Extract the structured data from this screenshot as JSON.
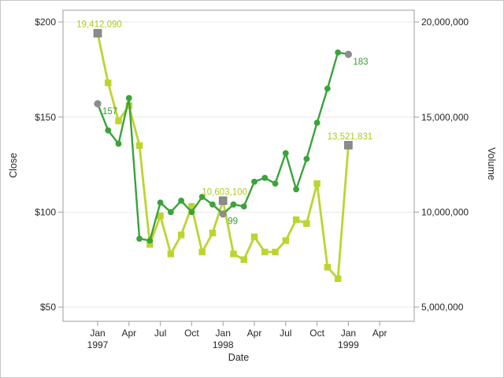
{
  "chart_data": {
    "type": "line",
    "title": "",
    "grid": "horizontal",
    "legend": "none",
    "x_axis": {
      "label": "Date",
      "tick_labels": [
        "Jan",
        "Apr",
        "Jul",
        "Oct",
        "Jan",
        "Apr",
        "Jul",
        "Oct",
        "Jan",
        "Apr"
      ],
      "year_labels": [
        {
          "text": "1997",
          "tick_index": 0
        },
        {
          "text": "1998",
          "tick_index": 4
        },
        {
          "text": "1999",
          "tick_index": 8
        }
      ]
    },
    "y_left": {
      "label": "Close",
      "tick_labels": [
        "$200",
        "$150",
        "$100",
        "$50"
      ],
      "tick_values": [
        200,
        150,
        100,
        50
      ],
      "range": [
        50,
        200
      ]
    },
    "y_right": {
      "label": "Volume",
      "tick_labels": [
        "20,000,000",
        "15,000,000",
        "10,000,000",
        "5,000,000"
      ],
      "tick_values": [
        20000000,
        15000000,
        10000000,
        5000000
      ],
      "range": [
        5000000,
        20000000
      ]
    },
    "months": [
      "Jan 1997",
      "Feb 1997",
      "Mar 1997",
      "Apr 1997",
      "May 1997",
      "Jun 1997",
      "Jul 1997",
      "Aug 1997",
      "Sep 1997",
      "Oct 1997",
      "Nov 1997",
      "Dec 1997",
      "Jan 1998",
      "Feb 1998",
      "Mar 1998",
      "Apr 1998",
      "May 1998",
      "Jun 1998",
      "Jul 1998",
      "Aug 1998",
      "Sep 1998",
      "Oct 1998",
      "Nov 1998",
      "Dec 1998",
      "Jan 1999"
    ],
    "series": [
      {
        "name": "Volume",
        "axis": "right",
        "marker": "square",
        "color": "#bdd42f",
        "values": [
          19412090,
          16800000,
          14800000,
          15600000,
          13500000,
          8300000,
          9800000,
          7800000,
          8800000,
          10300000,
          7900000,
          8900000,
          10603100,
          7800000,
          7500000,
          8700000,
          7900000,
          7900000,
          8500000,
          9600000,
          9400000,
          11500000,
          7100000,
          6500000,
          13521831
        ]
      },
      {
        "name": "Close",
        "axis": "left",
        "marker": "circle",
        "color": "#3aa33a",
        "values": [
          157,
          143,
          136,
          160,
          86,
          85,
          105,
          100,
          106,
          100,
          108,
          104,
          99,
          104,
          103,
          116,
          118,
          115,
          131,
          112,
          128,
          147,
          165,
          184,
          183
        ]
      }
    ],
    "annotations": [
      {
        "series": "Volume",
        "index": 0,
        "text": "19,412,090",
        "placement": "above"
      },
      {
        "series": "Close",
        "index": 0,
        "text": "157",
        "placement": "below-right"
      },
      {
        "series": "Volume",
        "index": 12,
        "text": "10,603,100",
        "placement": "above"
      },
      {
        "series": "Close",
        "index": 12,
        "text": "99",
        "placement": "below-right"
      },
      {
        "series": "Volume",
        "index": 24,
        "text": "13,521,831",
        "placement": "above"
      },
      {
        "series": "Close",
        "index": 24,
        "text": "183",
        "placement": "below-right"
      }
    ]
  },
  "colors": {
    "close_line": "#3aa33a",
    "volume_line": "#bdd42f",
    "close_label": "#3c9a3c",
    "volume_label": "#aec81e",
    "annotation_marker": "#8c8c8c",
    "annotation_marker_border": "#7d7d7d",
    "frame": "#9e9e9e",
    "grid": "#e8e8e8",
    "text": "#262626",
    "page_border": "#c6c6c6",
    "background": "#ffffff"
  }
}
